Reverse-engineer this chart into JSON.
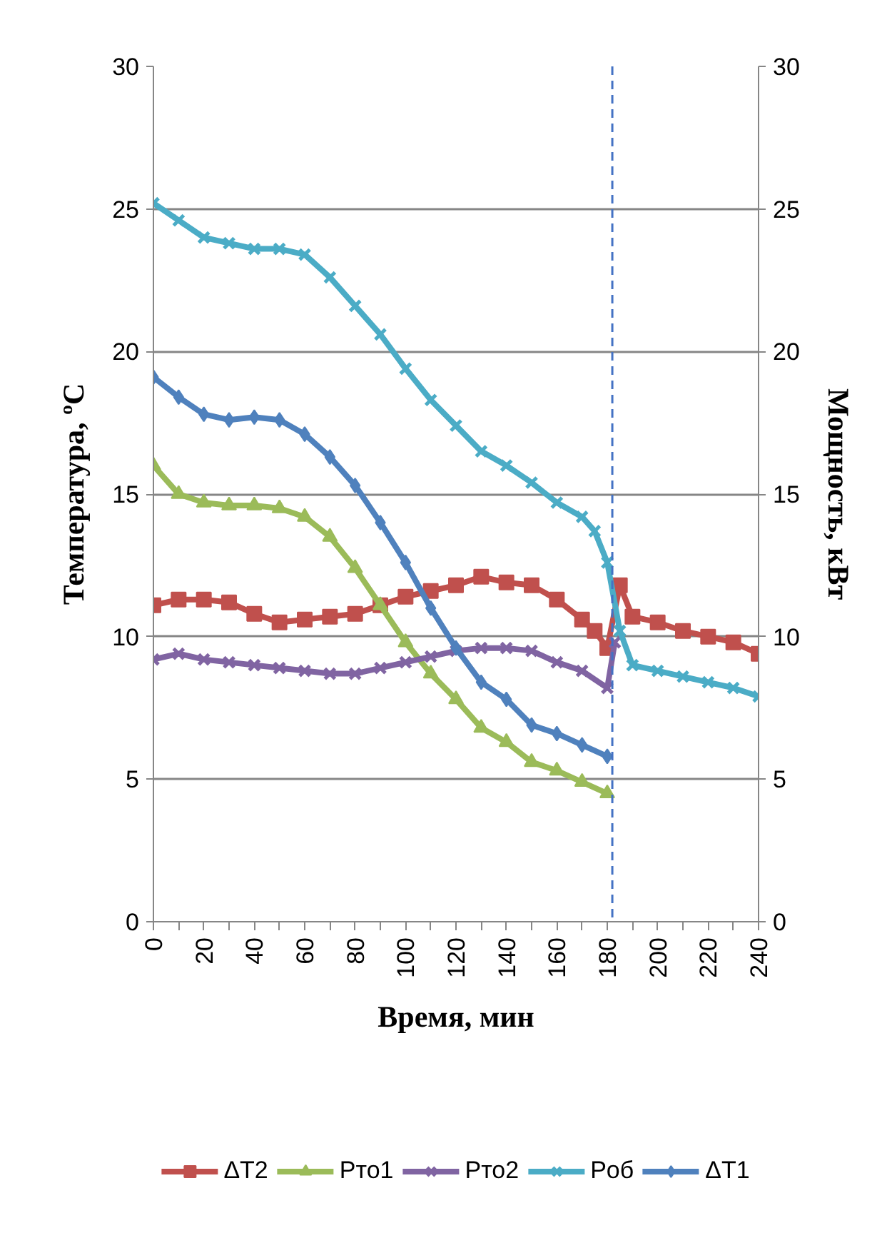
{
  "chart_data": {
    "type": "line",
    "xlabel": "Время, мин",
    "ylabel": "Температура, ºC",
    "y2label": "Мощность, кВт",
    "xlim": [
      0,
      240
    ],
    "ylim": [
      0,
      30
    ],
    "y2lim": [
      0,
      30
    ],
    "xticks": [
      0,
      {
        "value": 10,
        "label": null
      },
      20,
      {
        "value": 30,
        "label": null
      },
      40,
      {
        "value": 50,
        "label": null
      },
      60,
      {
        "value": 70,
        "label": null
      },
      80,
      {
        "value": 90,
        "label": null
      },
      100,
      {
        "value": 110,
        "label": null
      },
      120,
      {
        "value": 130,
        "label": null
      },
      140,
      {
        "value": 150,
        "label": null
      },
      160,
      {
        "value": 170,
        "label": null
      },
      180,
      {
        "value": 190,
        "label": null
      },
      200,
      {
        "value": 210,
        "label": null
      },
      220,
      {
        "value": 230,
        "label": null
      },
      240
    ],
    "yticks": [
      0,
      5,
      10,
      15,
      20,
      25,
      30
    ],
    "y2ticks": [
      0,
      5,
      10,
      15,
      20,
      25,
      30
    ],
    "grid": "y",
    "legend": "bottom",
    "ref_lines": [
      {
        "axis": "x",
        "value": 182,
        "label": null,
        "color": "#4472c4",
        "line_style": "dashed"
      }
    ],
    "series": [
      {
        "name": "ΔT2",
        "color": "#c0504d",
        "marker": "square",
        "x": [
          0,
          10,
          20,
          30,
          40,
          50,
          60,
          70,
          80,
          90,
          100,
          110,
          120,
          130,
          140,
          150,
          160,
          170,
          175,
          180,
          185,
          190,
          200,
          210,
          220,
          230,
          240
        ],
        "values": [
          11.1,
          11.3,
          11.3,
          11.2,
          10.8,
          10.5,
          10.6,
          10.7,
          10.8,
          11.1,
          11.4,
          11.6,
          11.8,
          12.1,
          11.9,
          11.8,
          11.3,
          10.6,
          10.2,
          9.6,
          11.8,
          10.7,
          10.5,
          10.2,
          10.0,
          9.8,
          9.4
        ]
      },
      {
        "name": "Pто1",
        "color": "#9bbb59",
        "marker": "triangle",
        "x": [
          0,
          10,
          20,
          30,
          40,
          50,
          60,
          70,
          80,
          90,
          100,
          110,
          120,
          130,
          140,
          150,
          160,
          170,
          180
        ],
        "values": [
          16.0,
          15.0,
          14.7,
          14.6,
          14.6,
          14.5,
          14.2,
          13.5,
          12.4,
          11.1,
          9.8,
          8.7,
          7.8,
          6.8,
          6.3,
          5.6,
          5.3,
          4.9,
          4.5
        ]
      },
      {
        "name": "Pто2",
        "color": "#8064a2",
        "marker": "cross",
        "x": [
          0,
          10,
          20,
          30,
          40,
          50,
          60,
          70,
          80,
          90,
          100,
          110,
          120,
          130,
          140,
          150,
          160,
          170,
          180,
          183
        ],
        "values": [
          9.2,
          9.4,
          9.2,
          9.1,
          9.0,
          8.9,
          8.8,
          8.7,
          8.7,
          8.9,
          9.1,
          9.3,
          9.5,
          9.6,
          9.6,
          9.5,
          9.1,
          8.8,
          8.2,
          9.8
        ]
      },
      {
        "name": "Pоб",
        "color": "#4bacc6",
        "marker": "cross",
        "x": [
          0,
          10,
          20,
          30,
          40,
          50,
          60,
          70,
          80,
          90,
          100,
          110,
          120,
          130,
          140,
          150,
          160,
          170,
          175,
          180,
          185,
          190,
          200,
          210,
          220,
          230,
          240
        ],
        "values": [
          25.2,
          24.6,
          24.0,
          23.8,
          23.6,
          23.6,
          23.4,
          22.6,
          21.6,
          20.6,
          19.4,
          18.3,
          17.4,
          16.5,
          16.0,
          15.4,
          14.7,
          14.2,
          13.7,
          12.6,
          10.2,
          9.0,
          8.8,
          8.6,
          8.4,
          8.2,
          7.9
        ]
      },
      {
        "name": "ΔT1",
        "color": "#4f81bd",
        "marker": "diamond",
        "x": [
          0,
          10,
          20,
          30,
          40,
          50,
          60,
          70,
          80,
          90,
          100,
          110,
          120,
          130,
          140,
          150,
          160,
          170,
          180
        ],
        "values": [
          19.1,
          18.4,
          17.8,
          17.6,
          17.7,
          17.6,
          17.1,
          16.3,
          15.3,
          14.0,
          12.6,
          11.0,
          9.6,
          8.4,
          7.8,
          6.9,
          6.6,
          6.2,
          5.8
        ]
      }
    ]
  }
}
